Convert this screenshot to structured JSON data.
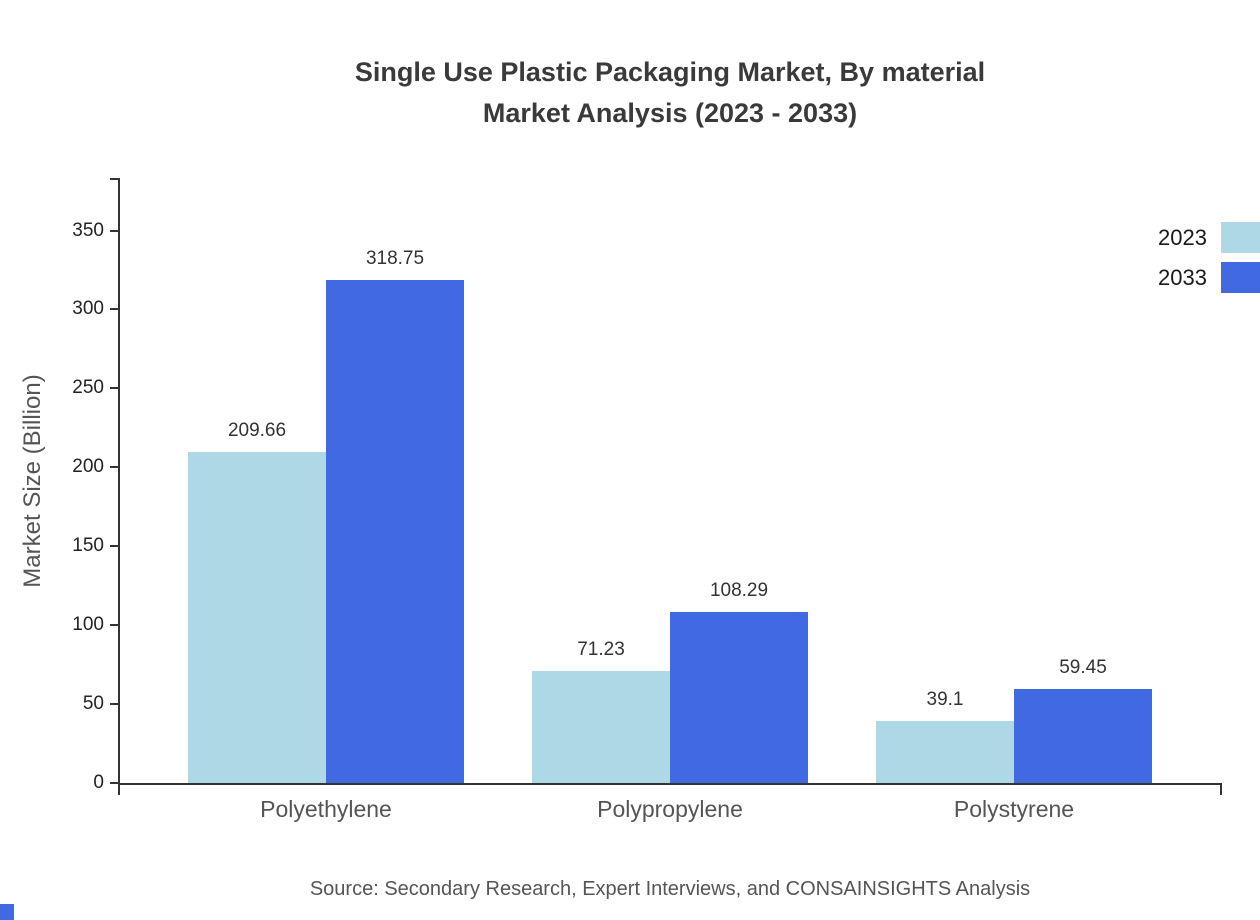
{
  "title": {
    "line1": "Single Use Plastic Packaging Market, By material",
    "line2": "Market Analysis (2023 - 2033)"
  },
  "source": "Source: Secondary Research, Expert Interviews, and CONSAINSIGHTS Analysis",
  "colors": {
    "series_2023": "#ADD8E6",
    "series_2033": "#4169E1",
    "axis": "#333333"
  },
  "chart_data": {
    "type": "bar",
    "title": "Single Use Plastic Packaging Market, By material Market Analysis (2023 - 2033)",
    "categories": [
      "Polyethylene",
      "Polypropylene",
      "Polystyrene"
    ],
    "series": [
      {
        "name": "2023",
        "color": "#ADD8E6",
        "values": [
          209.66,
          71.23,
          39.1
        ]
      },
      {
        "name": "2033",
        "color": "#4169E1",
        "values": [
          318.75,
          108.29,
          59.45
        ]
      }
    ],
    "xlabel": "",
    "ylabel": "Market Size (Billion)",
    "yticks": [
      0,
      50,
      100,
      150,
      200,
      250,
      300,
      350
    ],
    "ylim": [
      0,
      382
    ],
    "legend_position": "top-right",
    "grid": false
  }
}
